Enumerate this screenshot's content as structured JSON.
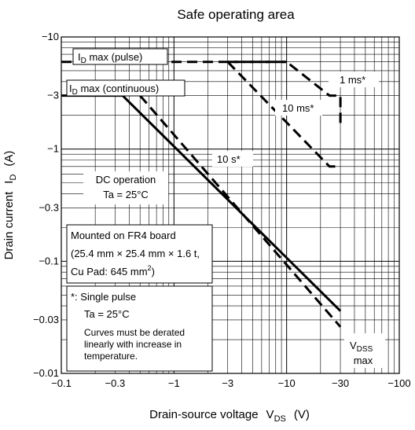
{
  "chart_data": {
    "type": "line",
    "title": "Safe operating area",
    "x_axis": {
      "label": "Drain-source voltage",
      "symbol": "V",
      "symbol_sub": "DS",
      "unit": "(V)",
      "scale": "log",
      "range": [
        -0.1,
        -100
      ],
      "ticks": [
        "−0.1",
        "−0.3",
        "−1",
        "−3",
        "−10",
        "−30",
        "−100"
      ]
    },
    "y_axis": {
      "label": "Drain current",
      "symbol": "I",
      "symbol_sub": "D",
      "unit": "(A)",
      "scale": "log",
      "range": [
        -0.01,
        -10
      ],
      "ticks": [
        "−0.01",
        "−0.03",
        "−0.1",
        "−0.3",
        "−1",
        "−3",
        "−10"
      ]
    },
    "grid": true,
    "series": [
      {
        "name": "ID max (pulse)",
        "style": "dashed",
        "points": [
          [
            -0.1,
            -6
          ],
          [
            -3,
            -6
          ],
          [
            -10,
            -6
          ]
        ]
      },
      {
        "name": "1 ms*",
        "style": "dashed",
        "points": [
          [
            -3,
            -6
          ],
          [
            -10,
            -6
          ],
          [
            -24,
            -3
          ],
          [
            -30,
            -3
          ],
          [
            -30,
            -1.7
          ]
        ]
      },
      {
        "name": "10 ms*",
        "style": "dashed",
        "points": [
          [
            -3,
            -6
          ],
          [
            -24,
            -0.7
          ],
          [
            -30,
            -0.7
          ]
        ]
      },
      {
        "name": "10 s*",
        "style": "dashed",
        "points": [
          [
            -0.5,
            -3
          ],
          [
            -30,
            -0.026
          ]
        ]
      },
      {
        "name": "DC operation",
        "style": "solid",
        "points": [
          [
            -0.1,
            -3
          ],
          [
            -0.35,
            -3
          ],
          [
            -30,
            -0.036
          ]
        ]
      }
    ],
    "annotations": {
      "id_pulse": {
        "prefix": "I",
        "sub": "D",
        "suffix": " max (pulse)"
      },
      "id_cont": {
        "prefix": "I",
        "sub": "D",
        "suffix": " max (continuous)"
      },
      "ms1": "1 ms*",
      "ms10": "10 ms*",
      "s10": "10 s*",
      "dc1": "DC operation",
      "dc2": "Ta = 25°C",
      "board1": "Mounted on FR4 board",
      "board2": "(25.4 mm × 25.4 mm × 1.6 t,",
      "board3_pre": "Cu Pad: 645 mm",
      "board3_sup": "2",
      "board3_post": ")",
      "note1": "*:  Single pulse",
      "note2": "Ta = 25°C",
      "note3": "Curves must be derated",
      "note4": "linearly with increase in",
      "note5": "temperature.",
      "vdss_pre": "V",
      "vdss_sub": "DSS",
      "vdss_max": "max"
    }
  }
}
